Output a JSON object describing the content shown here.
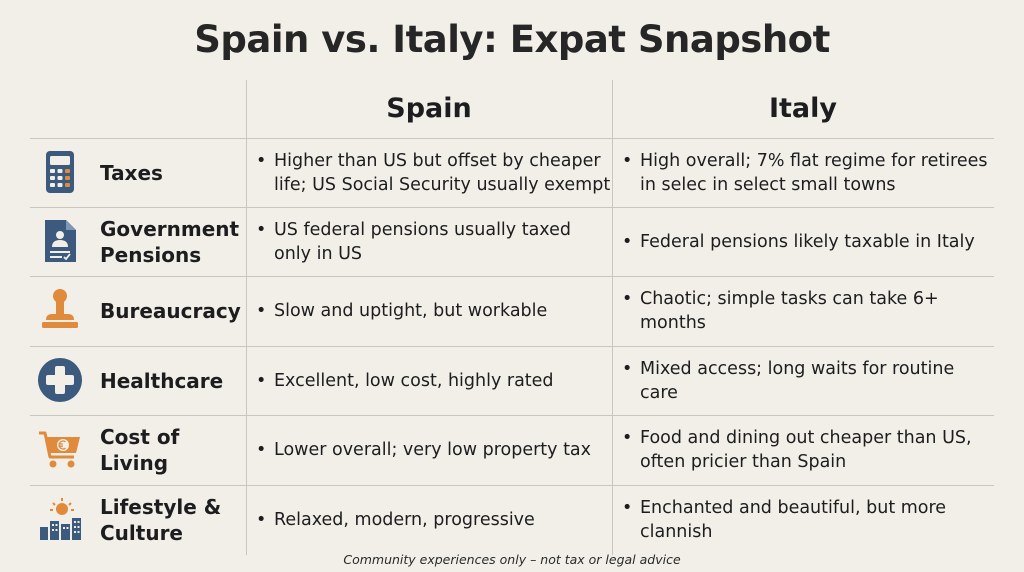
{
  "title": "Spain vs. Italy: Expat Snapshot",
  "columns": {
    "spain": "Spain",
    "italy": "Italy"
  },
  "bullet": "•",
  "rows": [
    {
      "icon": "calculator-icon",
      "label": "Taxes",
      "spain": "Higher than US but offset by cheaper life; US Social Security usually exempt",
      "italy": "High overall; 7% flat regime for retirees in selec in select small towns"
    },
    {
      "icon": "pension-document-icon",
      "label": "Government Pensions",
      "spain": "US federal pensions usually taxed only in US",
      "italy": "Federal pensions likely taxable in Italy"
    },
    {
      "icon": "rubber-stamp-icon",
      "label": "Bureaucracy",
      "spain": "Slow and uptight, but workable",
      "italy": "Chaotic; simple tasks can take 6+ months"
    },
    {
      "icon": "medical-cross-icon",
      "label": "Healthcare",
      "spain": "Excellent, low cost, highly rated",
      "italy": "Mixed access; long waits for routine care"
    },
    {
      "icon": "shopping-cart-euro-icon",
      "label": "Cost of Living",
      "spain": "Lower overall; very low property tax",
      "italy": "Food and dining out cheaper than US, often pricier than Spain"
    },
    {
      "icon": "sun-city-icon",
      "label": "Lifestyle & Culture",
      "spain": "Relaxed, modern, progressive",
      "italy": "Enchanted and beautiful, but more clannish"
    }
  ],
  "footer": "Community experiences only – not tax or legal advice",
  "colors": {
    "navy": "#3b5a7d",
    "orange": "#e08a3c",
    "grid": "#c9c6bd",
    "background": "#f1efe8"
  }
}
